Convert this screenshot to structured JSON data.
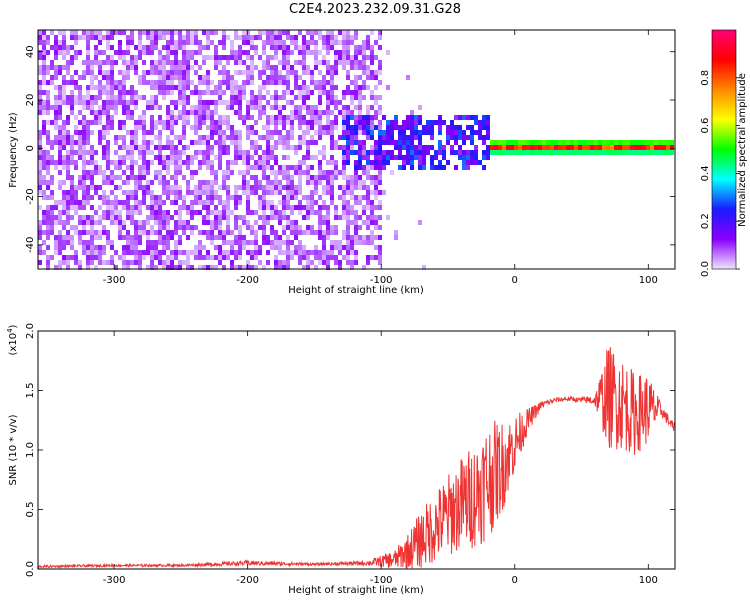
{
  "title": "C2E4.2023.232.09.31.G28",
  "colors": {
    "snr_line": "#ee3333",
    "spectrogram_low": "#e6d6ff",
    "spectrogram_mid": "#7a1cf0",
    "spectrogram_high": "#e8231e"
  },
  "chart_data": [
    {
      "id": "spectrogram",
      "type": "heatmap",
      "xlabel": "Height of straight line (km)",
      "ylabel": "Frequency (Hz)",
      "xlim": [
        -357,
        120
      ],
      "ylim": [
        -50,
        49
      ],
      "xticks": [
        -300,
        -200,
        -100,
        0,
        100
      ],
      "xtick_labels": [
        "-300",
        "-200",
        "-100",
        "0",
        "100"
      ],
      "yticks": [
        -40,
        -20,
        0,
        20,
        40
      ],
      "ytick_labels": [
        "-40",
        "-20",
        "0",
        "20",
        "40"
      ],
      "colorbar": {
        "label": "Normalized spectral amplitude",
        "range": [
          0,
          1
        ],
        "ticks": [
          0.0,
          0.2,
          0.4,
          0.6,
          0.8
        ],
        "tick_labels": [
          "0.0",
          "0.2",
          "0.4",
          "0.6",
          "0.8"
        ],
        "colormap": [
          "#f0e6ff",
          "#8a00ff",
          "#1a1aff",
          "#00ffff",
          "#00ff00",
          "#ffff00",
          "#ff8800",
          "#ff0000",
          "#ff0077"
        ]
      },
      "regions": [
        {
          "x_range": [
            -357,
            -100
          ],
          "freq_range": [
            -50,
            49
          ],
          "amplitude": [
            0.02,
            0.12
          ],
          "description_type": "noise"
        },
        {
          "x_range": [
            -130,
            -20
          ],
          "freq_range": [
            -10,
            14
          ],
          "amplitude": [
            0.1,
            0.3
          ]
        },
        {
          "x_range": [
            -20,
            120
          ],
          "freq_range": [
            -2,
            3
          ],
          "amplitude": [
            0.4,
            1.0
          ],
          "center_freq": 0.5
        }
      ]
    },
    {
      "id": "snr",
      "type": "line",
      "xlabel": "Height of straight line (km)",
      "ylabel": "SNR (10 * v/v)",
      "y_multiplier": "(x10^4)",
      "y_multiplier_base": "(x10",
      "y_multiplier_exp": "4",
      "y_multiplier_close": ")",
      "xlim": [
        -357,
        120
      ],
      "ylim": [
        0,
        2.0
      ],
      "xticks": [
        -300,
        -200,
        -100,
        0,
        100
      ],
      "xtick_labels": [
        "-300",
        "-200",
        "-100",
        "0",
        "100"
      ],
      "yticks": [
        0.0,
        0.5,
        1.0,
        1.5,
        2.0
      ],
      "ytick_labels": [
        "0.0",
        "0.5",
        "1.0",
        "1.5",
        "2.0"
      ],
      "series": [
        {
          "x": [
            -357,
            -300,
            -250,
            -200,
            -150,
            -110,
            -90,
            -80,
            -70,
            -60,
            -50,
            -40,
            -30,
            -20,
            -10,
            0,
            10,
            20,
            30,
            40,
            50,
            60,
            70,
            80,
            90,
            100,
            110,
            120
          ],
          "y": [
            0.02,
            0.03,
            0.03,
            0.05,
            0.04,
            0.05,
            0.08,
            0.15,
            0.25,
            0.35,
            0.45,
            0.55,
            0.62,
            0.75,
            0.85,
            1.05,
            1.25,
            1.38,
            1.42,
            1.43,
            1.42,
            1.42,
            1.45,
            1.4,
            1.3,
            1.35,
            1.33,
            1.17
          ],
          "noise_amplitude": [
            0.01,
            0.01,
            0.01,
            0.02,
            0.01,
            0.02,
            0.08,
            0.15,
            0.25,
            0.3,
            0.35,
            0.4,
            0.45,
            0.5,
            0.4,
            0.25,
            0.1,
            0.03,
            0.02,
            0.02,
            0.02,
            0.05,
            0.45,
            0.4,
            0.35,
            0.3,
            0.05,
            0.05
          ]
        }
      ]
    }
  ]
}
